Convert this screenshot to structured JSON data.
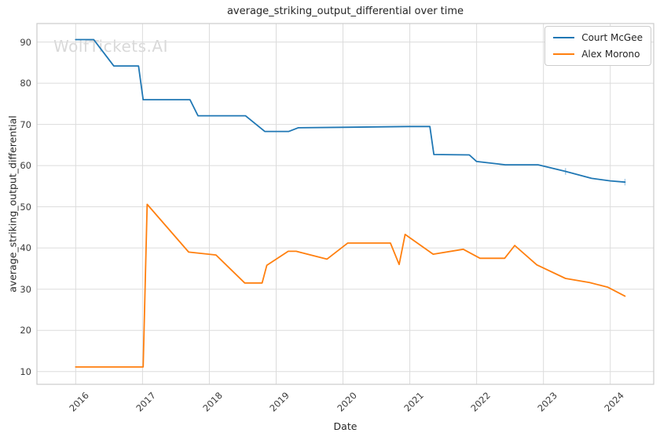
{
  "watermark": "WolfTickets.AI",
  "chart_data": {
    "type": "line",
    "title": "average_striking_output_differential over time",
    "xlabel": "Date",
    "ylabel": "average_striking_output_differential",
    "x_ticks": [
      2016,
      2017,
      2018,
      2019,
      2020,
      2021,
      2022,
      2023,
      2024
    ],
    "y_ticks": [
      10,
      20,
      30,
      40,
      50,
      60,
      70,
      80,
      90
    ],
    "xlim": [
      2015.42,
      2024.65
    ],
    "ylim": [
      6.9,
      94.5
    ],
    "grid": true,
    "legend_position": "upper right",
    "colors": {
      "grid": "#dcdcdc",
      "spine": "#cccccc",
      "text": "#262626",
      "tick_text": "#3d3d3d",
      "watermark": "#d9d9d9",
      "background": "#ffffff"
    },
    "series": [
      {
        "name": "Court McGee",
        "color": "#1f77b4",
        "points": [
          [
            2016.0,
            90.6
          ],
          [
            2016.27,
            90.6
          ],
          [
            2016.57,
            84.2
          ],
          [
            2016.94,
            84.2
          ],
          [
            2017.01,
            76.0
          ],
          [
            2017.71,
            76.0
          ],
          [
            2017.83,
            72.1
          ],
          [
            2018.54,
            72.1
          ],
          [
            2018.83,
            68.3
          ],
          [
            2019.19,
            68.3
          ],
          [
            2019.33,
            69.2
          ],
          [
            2020.0,
            69.3
          ],
          [
            2020.98,
            69.5
          ],
          [
            2021.3,
            69.5
          ],
          [
            2021.36,
            62.7
          ],
          [
            2021.89,
            62.6
          ],
          [
            2022.0,
            61.0
          ],
          [
            2022.43,
            60.2
          ],
          [
            2022.92,
            60.2
          ],
          [
            2023.33,
            58.6
          ],
          [
            2023.72,
            56.9
          ],
          [
            2024.0,
            56.3
          ],
          [
            2024.22,
            56.0
          ]
        ]
      },
      {
        "name": "Alex Morono",
        "color": "#ff7f0e",
        "points": [
          [
            2016.0,
            11.1
          ],
          [
            2017.01,
            11.1
          ],
          [
            2017.07,
            50.6
          ],
          [
            2017.69,
            39.0
          ],
          [
            2018.1,
            38.3
          ],
          [
            2018.53,
            31.5
          ],
          [
            2018.79,
            31.5
          ],
          [
            2018.86,
            35.8
          ],
          [
            2019.18,
            39.2
          ],
          [
            2019.3,
            39.2
          ],
          [
            2019.76,
            37.3
          ],
          [
            2020.07,
            41.2
          ],
          [
            2020.71,
            41.2
          ],
          [
            2020.84,
            36.0
          ],
          [
            2020.93,
            43.3
          ],
          [
            2021.35,
            38.5
          ],
          [
            2021.8,
            39.7
          ],
          [
            2022.05,
            37.5
          ],
          [
            2022.42,
            37.5
          ],
          [
            2022.57,
            40.6
          ],
          [
            2022.9,
            35.9
          ],
          [
            2023.33,
            32.6
          ],
          [
            2023.69,
            31.6
          ],
          [
            2023.96,
            30.5
          ],
          [
            2024.22,
            28.3
          ]
        ]
      }
    ],
    "error_bars": [
      {
        "series": "Court McGee",
        "x": 2023.33,
        "y": 58.6,
        "half_height": 0.8,
        "color": "#a8cce6"
      },
      {
        "series": "Court McGee",
        "x": 2024.22,
        "y": 56.0,
        "half_height": 0.8,
        "color": "#a8cce6"
      }
    ]
  }
}
